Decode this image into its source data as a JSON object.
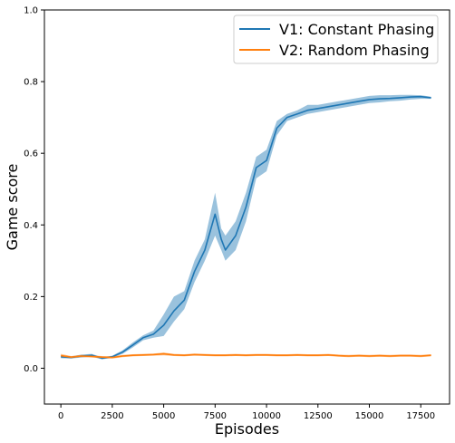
{
  "chart_data": {
    "type": "line",
    "xlabel": "Episodes",
    "ylabel": "Game score",
    "xlim": [
      -800,
      18900
    ],
    "ylim": [
      -0.1,
      1.0
    ],
    "xticks": [
      0,
      2500,
      5000,
      7500,
      10000,
      12500,
      15000,
      17500
    ],
    "xtick_labels": [
      "0",
      "2500",
      "5000",
      "7500",
      "10000",
      "12500",
      "15000",
      "17500"
    ],
    "yticks": [
      0.0,
      0.2,
      0.4,
      0.6,
      0.8,
      1.0
    ],
    "ytick_labels": [
      "0.0",
      "0.2",
      "0.4",
      "0.6",
      "0.8",
      "1.0"
    ],
    "grid": false,
    "legend_position": "top-right",
    "series": [
      {
        "name": "V1: Constant Phasing",
        "color": "#1f77b4",
        "band_color": "#1f77b4",
        "x": [
          0,
          500,
          1000,
          1500,
          2000,
          2500,
          3000,
          3500,
          4000,
          4500,
          5000,
          5500,
          6000,
          6500,
          7000,
          7500,
          7800,
          8000,
          8500,
          9000,
          9500,
          10000,
          10500,
          11000,
          11500,
          12000,
          12500,
          13000,
          13500,
          14000,
          14500,
          15000,
          15500,
          16000,
          16500,
          17000,
          17500,
          18000
        ],
        "y": [
          0.032,
          0.03,
          0.034,
          0.036,
          0.028,
          0.032,
          0.045,
          0.065,
          0.085,
          0.095,
          0.12,
          0.16,
          0.19,
          0.27,
          0.33,
          0.43,
          0.36,
          0.33,
          0.37,
          0.45,
          0.56,
          0.58,
          0.67,
          0.7,
          0.71,
          0.72,
          0.725,
          0.73,
          0.735,
          0.74,
          0.745,
          0.75,
          0.752,
          0.753,
          0.755,
          0.757,
          0.758,
          0.755
        ],
        "lower": [
          0.028,
          0.027,
          0.03,
          0.032,
          0.025,
          0.029,
          0.04,
          0.058,
          0.078,
          0.085,
          0.09,
          0.13,
          0.165,
          0.24,
          0.3,
          0.37,
          0.33,
          0.3,
          0.33,
          0.41,
          0.53,
          0.55,
          0.65,
          0.69,
          0.7,
          0.71,
          0.715,
          0.72,
          0.725,
          0.73,
          0.735,
          0.74,
          0.742,
          0.745,
          0.747,
          0.75,
          0.752,
          0.752
        ],
        "upper": [
          0.036,
          0.033,
          0.038,
          0.04,
          0.031,
          0.035,
          0.05,
          0.072,
          0.092,
          0.105,
          0.15,
          0.2,
          0.215,
          0.3,
          0.36,
          0.49,
          0.39,
          0.37,
          0.41,
          0.49,
          0.59,
          0.61,
          0.69,
          0.71,
          0.72,
          0.735,
          0.735,
          0.74,
          0.745,
          0.75,
          0.755,
          0.76,
          0.762,
          0.762,
          0.763,
          0.763,
          0.762,
          0.758
        ]
      },
      {
        "name": "V2: Random Phasing",
        "color": "#ff7f0e",
        "band_color": "#ff7f0e",
        "x": [
          0,
          500,
          1000,
          1500,
          2000,
          2500,
          3000,
          3500,
          4000,
          4500,
          5000,
          5500,
          6000,
          6500,
          7000,
          7500,
          8000,
          8500,
          9000,
          9500,
          10000,
          10500,
          11000,
          11500,
          12000,
          12500,
          13000,
          13500,
          14000,
          14500,
          15000,
          15500,
          16000,
          16500,
          17000,
          17500,
          18000
        ],
        "y": [
          0.035,
          0.031,
          0.034,
          0.033,
          0.031,
          0.03,
          0.034,
          0.036,
          0.037,
          0.038,
          0.04,
          0.037,
          0.036,
          0.038,
          0.037,
          0.036,
          0.036,
          0.037,
          0.036,
          0.037,
          0.037,
          0.036,
          0.036,
          0.037,
          0.036,
          0.036,
          0.037,
          0.035,
          0.034,
          0.035,
          0.034,
          0.035,
          0.034,
          0.035,
          0.035,
          0.034,
          0.036
        ],
        "lower": [
          0.03,
          0.028,
          0.031,
          0.03,
          0.028,
          0.027,
          0.031,
          0.033,
          0.034,
          0.035,
          0.036,
          0.034,
          0.033,
          0.035,
          0.034,
          0.033,
          0.033,
          0.034,
          0.033,
          0.034,
          0.034,
          0.033,
          0.033,
          0.034,
          0.033,
          0.033,
          0.034,
          0.032,
          0.031,
          0.032,
          0.031,
          0.032,
          0.031,
          0.032,
          0.032,
          0.031,
          0.033
        ],
        "upper": [
          0.04,
          0.034,
          0.037,
          0.036,
          0.034,
          0.033,
          0.037,
          0.039,
          0.04,
          0.041,
          0.044,
          0.04,
          0.039,
          0.041,
          0.04,
          0.039,
          0.039,
          0.04,
          0.039,
          0.04,
          0.04,
          0.039,
          0.039,
          0.04,
          0.039,
          0.039,
          0.04,
          0.038,
          0.037,
          0.038,
          0.037,
          0.038,
          0.037,
          0.038,
          0.038,
          0.037,
          0.039
        ]
      }
    ]
  }
}
